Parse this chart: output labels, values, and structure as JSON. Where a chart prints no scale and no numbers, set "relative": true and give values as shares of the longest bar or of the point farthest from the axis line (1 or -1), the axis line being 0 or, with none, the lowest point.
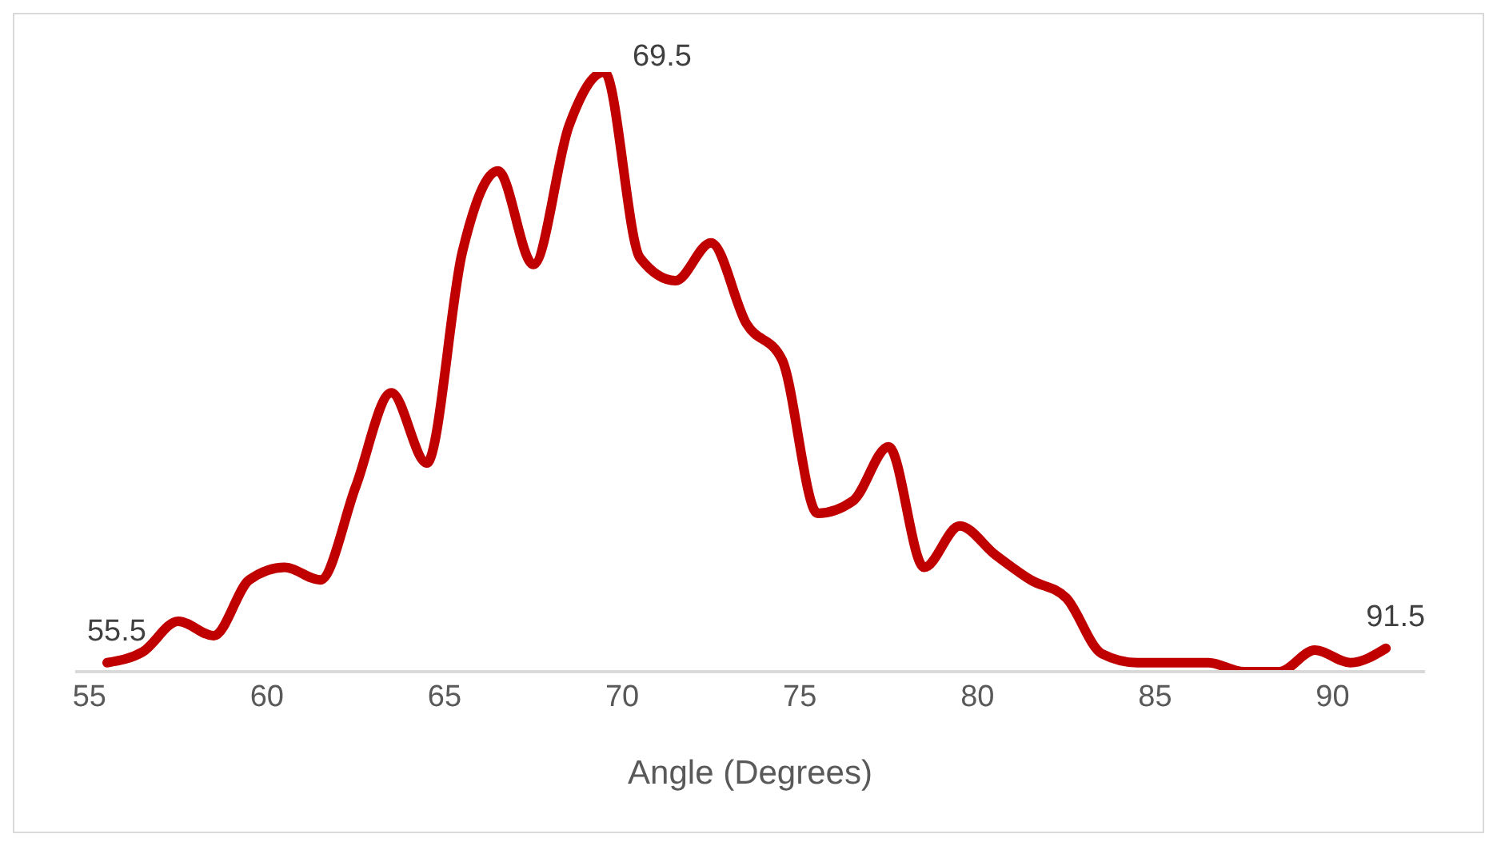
{
  "chart_data": {
    "type": "line",
    "xlabel": "Angle (Degrees)",
    "relative": true,
    "x": [
      55.5,
      56.5,
      57.5,
      58.5,
      59.5,
      60.5,
      61.5,
      62.5,
      63.5,
      64.5,
      65.5,
      66.5,
      67.5,
      68.5,
      69.5,
      70.5,
      71.5,
      72.5,
      73.5,
      74.5,
      75.5,
      76.5,
      77.5,
      78.5,
      79.5,
      80.5,
      81.5,
      82.5,
      83.5,
      84.5,
      85.5,
      86.5,
      87.5,
      88.5,
      89.5,
      90.5,
      91.5
    ],
    "series": [
      {
        "color": "#c00000",
        "values": [
          0.015,
          0.033,
          0.084,
          0.06,
          0.153,
          0.174,
          0.153,
          0.309,
          0.465,
          0.348,
          0.7,
          0.835,
          0.679,
          0.91,
          1,
          0.69,
          0.652,
          0.715,
          0.58,
          0.52,
          0.264,
          0.285,
          0.375,
          0.174,
          0.243,
          0.195,
          0.153,
          0.123,
          0.03,
          0.015,
          0.015,
          0.015,
          0,
          0,
          0.036,
          0.015,
          0.039
        ]
      }
    ],
    "xlim": [
      54.6,
      92.6
    ],
    "xticks": [
      55,
      60,
      65,
      70,
      75,
      80,
      85,
      90
    ],
    "annotations": [
      {
        "text": "55.5",
        "x": 55.5,
        "y": 0.015
      },
      {
        "text": "69.5",
        "x": 69.5,
        "y": 1
      },
      {
        "text": "91.5",
        "x": 91.5,
        "y": 0.039
      }
    ],
    "grid": false,
    "legend": false,
    "marker": "none",
    "line_style": "solid"
  }
}
